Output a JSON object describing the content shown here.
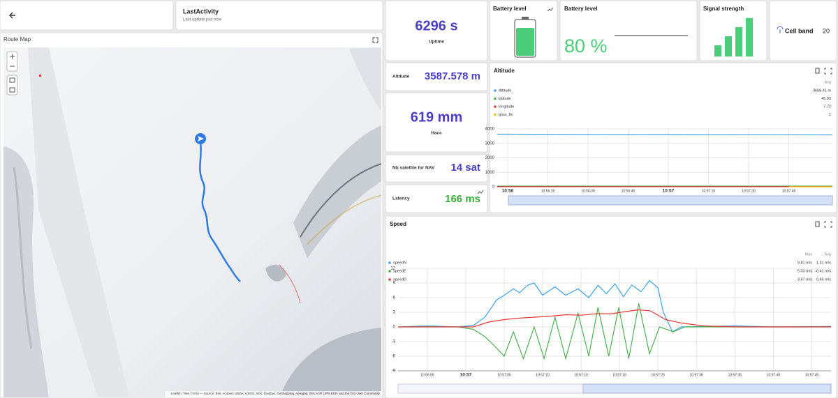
{
  "header": {
    "title": "LastActivity",
    "subtitle": "Last update just now"
  },
  "route_map": {
    "title": "Route Map",
    "attribution": "Leaflet | Tiles © Esri — Source: Esri, i-cubed, USDA, USGS, AEX, GeoEye, Getmapping, Aerogrid, IGN, IGP, UPR-EGP, and the GIS User Community"
  },
  "uptime": {
    "value": "6296 s",
    "label": "Uptime"
  },
  "battery_icon": {
    "title": "Battery level",
    "level": 80
  },
  "battery": {
    "title": "Battery level",
    "value": "80 %"
  },
  "signal": {
    "title": "Signal strength",
    "level": 4
  },
  "cell_band": {
    "label": "Cell band",
    "value": 20
  },
  "altitude": {
    "label": "Altitude",
    "value": "3587.578 m"
  },
  "hacc": {
    "value": "619 mm",
    "label": "Hacc"
  },
  "satellites": {
    "label": "Nb satellite for NAV",
    "value": "14 sat"
  },
  "latency": {
    "label": "Latency",
    "value": "166 ms"
  },
  "altitude_chart": {
    "title": "Altitude",
    "avg_header": "Avg",
    "xlim": [
      -3.9,
      121.3
    ],
    "ylim": [
      0,
      4000
    ],
    "yticks": [
      0,
      1000,
      2000,
      3000,
      4000
    ],
    "xticks": [
      {
        "value": 0,
        "label": "10:56"
      },
      {
        "value": 15,
        "label": "10:56:15"
      },
      {
        "value": 30,
        "label": "10:56:30"
      },
      {
        "value": 45,
        "label": "10:56:45"
      },
      {
        "value": 60,
        "label": "10:57"
      },
      {
        "value": 75,
        "label": "10:57:15"
      },
      {
        "value": 90,
        "label": "10:57:30"
      },
      {
        "value": 105,
        "label": "10:57:45"
      }
    ],
    "series": [
      {
        "name": "Altitude",
        "color": "#3ba3e6",
        "avg": "3668.41 m",
        "x": [
          -3.9,
          60,
          121.3
        ],
        "values": [
          3640,
          3610,
          3590
        ]
      },
      {
        "name": "latitude",
        "color": "#4caf50",
        "avg": "45.93",
        "x": [
          -3.9,
          121.3
        ],
        "values": [
          45.93,
          45.93
        ]
      },
      {
        "name": "longitude",
        "color": "#e53935",
        "avg": "7.72",
        "x": [
          -3.9,
          121.3
        ],
        "values": [
          7.72,
          7.72
        ]
      },
      {
        "name": "gnss_fix",
        "color": "#f4c20d",
        "avg": "1",
        "x": [
          105,
          121.3
        ],
        "values": [
          1,
          1
        ]
      }
    ]
  },
  "speed_chart": {
    "title": "Speed",
    "max_header": "Max",
    "avg_header": "Avg",
    "xlim": [
      1.2,
      57.5
    ],
    "ylim": [
      -9,
      12
    ],
    "yticks": [
      -9,
      -6,
      -3,
      0,
      3,
      6,
      9,
      12
    ],
    "xticks": [
      {
        "value": 5,
        "label": "10:56:55"
      },
      {
        "value": 10,
        "label": "10:57"
      },
      {
        "value": 15,
        "label": "10:57:05"
      },
      {
        "value": 20,
        "label": "10:57:10"
      },
      {
        "value": 25,
        "label": "10:57:15"
      },
      {
        "value": 30,
        "label": "10:57:20"
      },
      {
        "value": 35,
        "label": "10:57:25"
      },
      {
        "value": 40,
        "label": "10:57:30"
      },
      {
        "value": 45,
        "label": "10:57:35"
      },
      {
        "value": 50,
        "label": "10:57:40"
      },
      {
        "value": 55,
        "label": "10:57:45"
      }
    ],
    "series": [
      {
        "name": "speedN",
        "color": "#3ba3e6",
        "max": "9.81 m/s",
        "avg": "1.31 m/s",
        "x": [
          1.2,
          5,
          9,
          11,
          12.5,
          14,
          15,
          16.2,
          17,
          18,
          18.9,
          20,
          21.6,
          23,
          24.6,
          26,
          27.2,
          28.3,
          29.4,
          30.5,
          31.6,
          32.8,
          33.9,
          35,
          35.7,
          36.9,
          38,
          45,
          50,
          57.5
        ],
        "values": [
          0,
          0.2,
          0,
          0.3,
          2,
          5.5,
          6.5,
          7.8,
          7,
          8.5,
          9,
          6.5,
          8.2,
          6.5,
          7.8,
          6,
          8.5,
          6.8,
          8.8,
          6.2,
          8.6,
          7.2,
          9.5,
          8,
          3,
          -1,
          0,
          0.2,
          0,
          0.1
        ]
      },
      {
        "name": "speedE",
        "color": "#4caf50",
        "max": "5.03 m/s",
        "avg": "-0.41 m/s",
        "x": [
          1.2,
          9,
          11,
          12.5,
          13.8,
          15,
          16.2,
          17.5,
          18.9,
          20.2,
          21.6,
          23,
          24.6,
          26,
          27.2,
          28.6,
          29.9,
          31.2,
          32.5,
          33.9,
          35.2,
          37,
          38.5,
          57.5
        ],
        "values": [
          0,
          0,
          -0.5,
          -2,
          -4,
          -6,
          -1,
          -6.5,
          0,
          -6.5,
          2,
          -6.5,
          2.8,
          -6,
          4,
          -6,
          4,
          -6.5,
          4.8,
          -5.5,
          0,
          -1,
          0,
          0
        ]
      },
      {
        "name": "speedD",
        "color": "#e53935",
        "max": "3.67 m/s",
        "avg": "0.46 m/s",
        "x": [
          1.2,
          11,
          13,
          15,
          17,
          19,
          21,
          23,
          25,
          27,
          29,
          31,
          32.5,
          34,
          36,
          38,
          41,
          45,
          57.5
        ],
        "values": [
          0,
          0,
          1,
          1.5,
          1.8,
          2,
          2.2,
          2.5,
          2.4,
          2.7,
          2.7,
          3.2,
          3.5,
          3.3,
          1.5,
          0.8,
          0.2,
          0,
          0
        ]
      }
    ]
  }
}
